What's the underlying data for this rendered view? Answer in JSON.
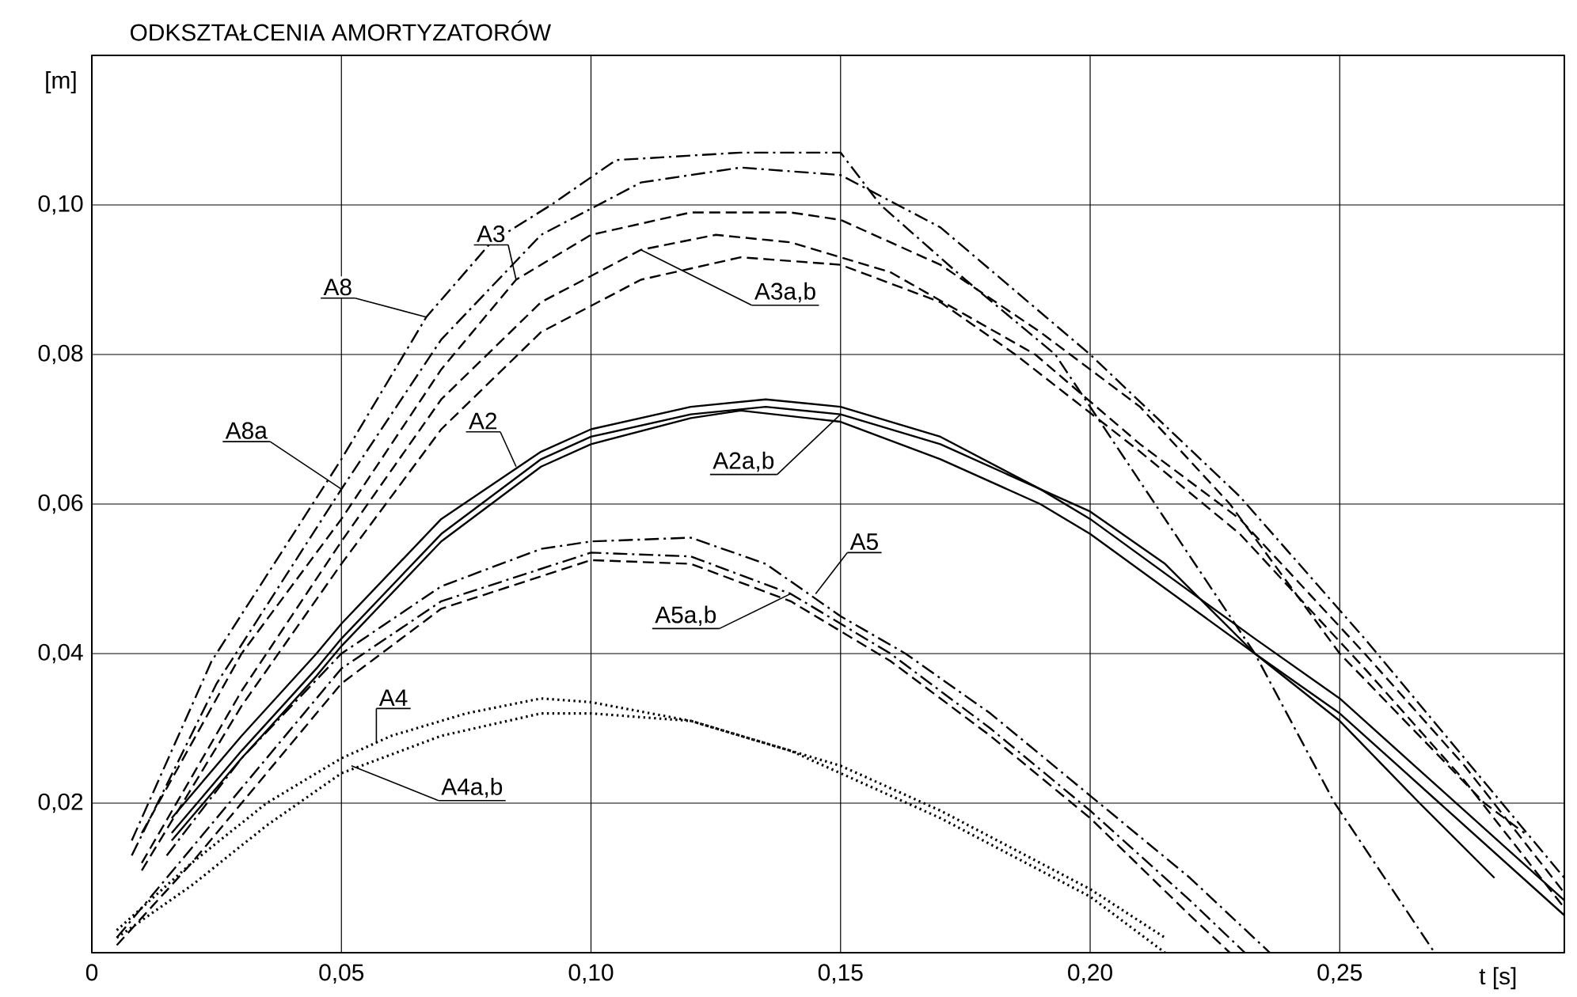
{
  "chart_data": {
    "type": "line",
    "title": "ODKSZTAŁCENIA AMORTYZATORÓW",
    "xlabel": "t [s]",
    "ylabel": "[m]",
    "xlim": [
      0,
      0.295
    ],
    "ylim": [
      0,
      0.12
    ],
    "xticks": [
      0,
      {
        "value": 0.05,
        "label": "0,05"
      },
      {
        "value": 0.1,
        "label": "0,10"
      },
      {
        "value": 0.15,
        "label": "0,15"
      },
      {
        "value": 0.2,
        "label": "0,20"
      },
      {
        "value": 0.25,
        "label": "0,25"
      }
    ],
    "yticks": [
      {
        "value": 0.02,
        "label": "0,02"
      },
      {
        "value": 0.04,
        "label": "0,04"
      },
      {
        "value": 0.06,
        "label": "0,06"
      },
      {
        "value": 0.08,
        "label": "0,08"
      },
      {
        "value": 0.1,
        "label": "0,10"
      }
    ],
    "grid": true,
    "series": [
      {
        "color": "#000000",
        "line_style": "dashdot",
        "x": [
          0.008,
          0.024,
          0.05,
          0.067,
          0.08,
          0.092,
          0.105,
          0.13,
          0.15,
          0.158,
          0.175,
          0.193,
          0.213,
          0.233,
          0.249,
          0.269
        ],
        "values": [
          0.015,
          0.039,
          0.066,
          0.085,
          0.095,
          0.1,
          0.106,
          0.107,
          0.107,
          0.1,
          0.09,
          0.08,
          0.06,
          0.04,
          0.02,
          0.0
        ]
      },
      {
        "color": "#000000",
        "line_style": "dashdot",
        "x": [
          0.008,
          0.025,
          0.05,
          0.07,
          0.09,
          0.11,
          0.13,
          0.15,
          0.17,
          0.2,
          0.23,
          0.255,
          0.275,
          0.295
        ],
        "values": [
          0.013,
          0.036,
          0.062,
          0.082,
          0.096,
          0.103,
          0.105,
          0.104,
          0.097,
          0.08,
          0.061,
          0.042,
          0.026,
          0.01
        ]
      },
      {
        "color": "#000000",
        "line_style": "dashed",
        "x": [
          0.01,
          0.03,
          0.05,
          0.07,
          0.085,
          0.1,
          0.12,
          0.14,
          0.15,
          0.17,
          0.19,
          0.21,
          0.228,
          0.25,
          0.279,
          0.287
        ],
        "values": [
          0.016,
          0.04,
          0.058,
          0.078,
          0.09,
          0.096,
          0.099,
          0.099,
          0.098,
          0.092,
          0.083,
          0.073,
          0.06,
          0.04,
          0.02,
          0.016
        ]
      },
      {
        "color": "#000000",
        "line_style": "dashed",
        "x": [
          0.01,
          0.03,
          0.05,
          0.07,
          0.09,
          0.11,
          0.125,
          0.14,
          0.16,
          0.189,
          0.21,
          0.23,
          0.255,
          0.275,
          0.295
        ],
        "values": [
          0.012,
          0.035,
          0.055,
          0.074,
          0.087,
          0.094,
          0.096,
          0.095,
          0.091,
          0.08,
          0.068,
          0.058,
          0.04,
          0.025,
          0.008
        ]
      },
      {
        "color": "#000000",
        "line_style": "dashed",
        "x": [
          0.01,
          0.03,
          0.05,
          0.07,
          0.09,
          0.11,
          0.13,
          0.15,
          0.17,
          0.185,
          0.21,
          0.23,
          0.255,
          0.275,
          0.295
        ],
        "values": [
          0.011,
          0.033,
          0.052,
          0.07,
          0.083,
          0.09,
          0.093,
          0.092,
          0.087,
          0.08,
          0.067,
          0.056,
          0.038,
          0.023,
          0.006
        ]
      },
      {
        "color": "#000000",
        "line_style": "solid",
        "x": [
          0.016,
          0.03,
          0.045,
          0.05,
          0.07,
          0.09,
          0.1,
          0.12,
          0.135,
          0.15,
          0.17,
          0.19,
          0.2,
          0.215,
          0.233,
          0.25,
          0.266,
          0.281
        ],
        "values": [
          0.018,
          0.029,
          0.04,
          0.044,
          0.058,
          0.067,
          0.07,
          0.073,
          0.074,
          0.073,
          0.069,
          0.062,
          0.059,
          0.052,
          0.04,
          0.031,
          0.02,
          0.01
        ]
      },
      {
        "color": "#000000",
        "line_style": "solid",
        "x": [
          0.016,
          0.03,
          0.045,
          0.05,
          0.07,
          0.09,
          0.1,
          0.12,
          0.135,
          0.15,
          0.17,
          0.19,
          0.2,
          0.233,
          0.25,
          0.27,
          0.295
        ],
        "values": [
          0.016,
          0.027,
          0.038,
          0.042,
          0.056,
          0.066,
          0.069,
          0.072,
          0.073,
          0.072,
          0.068,
          0.062,
          0.058,
          0.042,
          0.034,
          0.022,
          0.007
        ]
      },
      {
        "color": "#000000",
        "line_style": "solid",
        "x": [
          0.016,
          0.03,
          0.045,
          0.05,
          0.07,
          0.09,
          0.1,
          0.12,
          0.13,
          0.15,
          0.17,
          0.19,
          0.2,
          0.233,
          0.25,
          0.27,
          0.295
        ],
        "values": [
          0.015,
          0.026,
          0.037,
          0.041,
          0.055,
          0.065,
          0.068,
          0.0715,
          0.0725,
          0.071,
          0.066,
          0.06,
          0.056,
          0.04,
          0.032,
          0.02,
          0.005
        ]
      },
      {
        "color": "#000000",
        "line_style": "dashdot",
        "x": [
          0.015,
          0.03,
          0.05,
          0.07,
          0.09,
          0.1,
          0.12,
          0.135,
          0.15,
          0.163,
          0.18,
          0.2,
          0.22,
          0.236
        ],
        "values": [
          0.013,
          0.026,
          0.04,
          0.049,
          0.054,
          0.055,
          0.0555,
          0.052,
          0.045,
          0.04,
          0.032,
          0.021,
          0.01,
          0.0
        ]
      },
      {
        "color": "#000000",
        "line_style": "dashdot",
        "x": [
          0.005,
          0.02,
          0.05,
          0.07,
          0.1,
          0.12,
          0.14,
          0.16,
          0.18,
          0.2,
          0.22,
          0.231
        ],
        "values": [
          0.002,
          0.014,
          0.038,
          0.047,
          0.0535,
          0.053,
          0.048,
          0.04,
          0.03,
          0.019,
          0.007,
          0.0
        ]
      },
      {
        "color": "#000000",
        "line_style": "dashed",
        "x": [
          0.005,
          0.02,
          0.05,
          0.07,
          0.1,
          0.12,
          0.14,
          0.16,
          0.18,
          0.2,
          0.22,
          0.228
        ],
        "values": [
          0.001,
          0.012,
          0.036,
          0.046,
          0.0525,
          0.052,
          0.047,
          0.039,
          0.029,
          0.018,
          0.005,
          0.0
        ]
      },
      {
        "color": "#000000",
        "line_style": "dotted",
        "x": [
          0.005,
          0.02,
          0.035,
          0.05,
          0.06,
          0.075,
          0.09,
          0.1,
          0.12,
          0.14,
          0.15,
          0.17,
          0.2,
          0.215
        ],
        "values": [
          0.003,
          0.012,
          0.02,
          0.026,
          0.029,
          0.032,
          0.034,
          0.0335,
          0.031,
          0.027,
          0.024,
          0.018,
          0.0075,
          0.0
        ]
      },
      {
        "color": "#000000",
        "line_style": "dotted",
        "x": [
          0.005,
          0.02,
          0.035,
          0.05,
          0.07,
          0.09,
          0.1,
          0.12,
          0.14,
          0.15,
          0.17,
          0.2,
          0.215
        ],
        "values": [
          0.002,
          0.009,
          0.017,
          0.024,
          0.029,
          0.032,
          0.032,
          0.031,
          0.027,
          0.025,
          0.019,
          0.0085,
          0.002
        ]
      }
    ],
    "annotations": [
      {
        "text": "A8",
        "x": 0.067,
        "y": 0.085
      },
      {
        "text": "A8a",
        "x": 0.05,
        "y": 0.062
      },
      {
        "text": "A3",
        "x": 0.085,
        "y": 0.09
      },
      {
        "text": "A3a,b",
        "x": 0.11,
        "y": 0.094
      },
      {
        "text": "A2",
        "x": 0.085,
        "y": 0.065
      },
      {
        "text": "A2a,b",
        "x": 0.15,
        "y": 0.072
      },
      {
        "text": "A5",
        "x": 0.145,
        "y": 0.048
      },
      {
        "text": "A5a,b",
        "x": 0.14,
        "y": 0.048
      },
      {
        "text": "A4",
        "x": 0.057,
        "y": 0.028
      },
      {
        "text": "A4a,b",
        "x": 0.052,
        "y": 0.025
      }
    ]
  }
}
